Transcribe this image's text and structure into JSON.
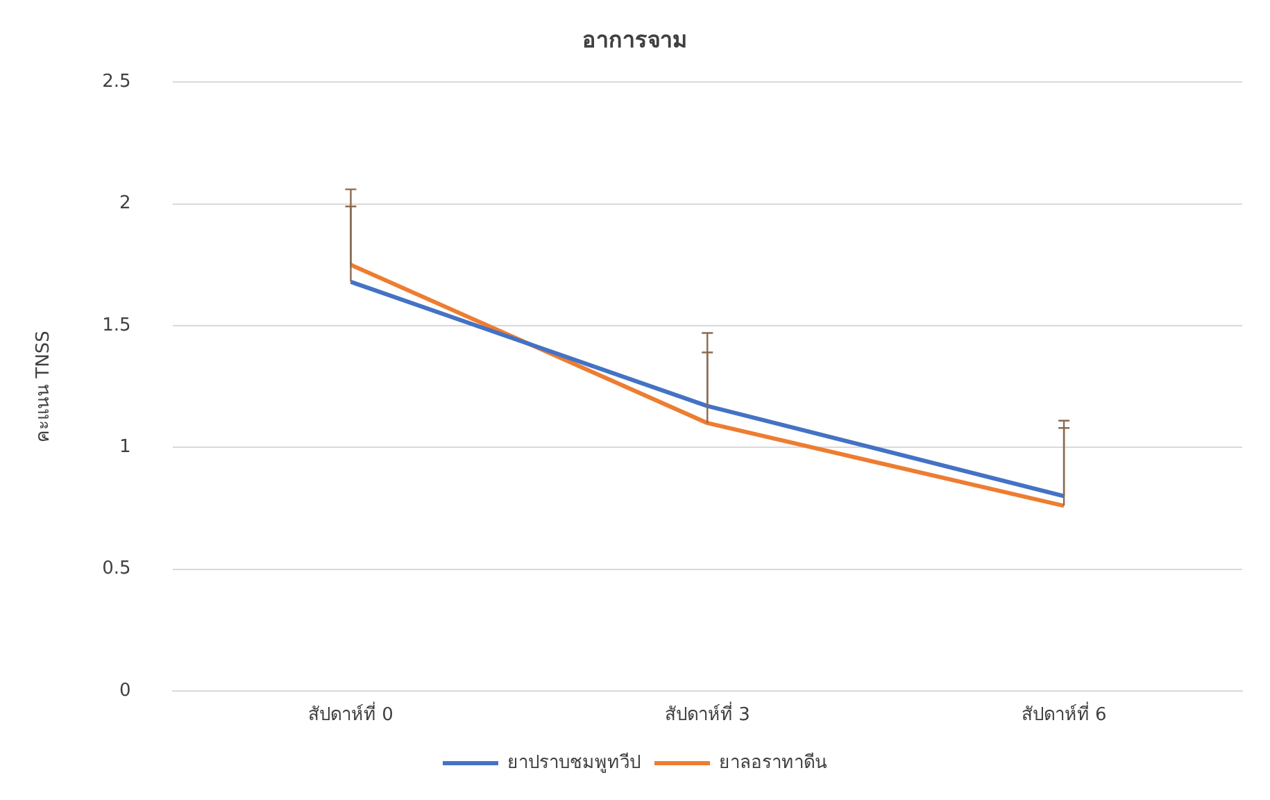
{
  "chart_data": {
    "type": "line",
    "title": "อาการจาม",
    "ylabel": "คะแนน TNSS",
    "categories": [
      "สัปดาห์ที่ 0",
      "สัปดาห์ที่ 3",
      "สัปดาห์ที่ 6"
    ],
    "series": [
      {
        "name": "ยาปราบชมพูทวีป",
        "color": "#4472c4",
        "values": [
          1.68,
          1.17,
          0.8
        ],
        "errors": [
          [
            1.68,
            1.99
          ],
          [
            1.17,
            1.39
          ],
          [
            0.8,
            1.08
          ]
        ]
      },
      {
        "name": "ยาลอราทาดีน",
        "color": "#ed7d31",
        "values": [
          1.75,
          1.1,
          0.76
        ],
        "errors": [
          [
            1.75,
            2.06
          ],
          [
            1.1,
            1.47
          ],
          [
            0.76,
            1.11
          ]
        ]
      }
    ],
    "ylim": [
      0,
      2.5
    ],
    "yticks": [
      0,
      0.5,
      1,
      1.5,
      2,
      2.5
    ],
    "grid": "y",
    "legend": "bottom",
    "marker": "none"
  }
}
